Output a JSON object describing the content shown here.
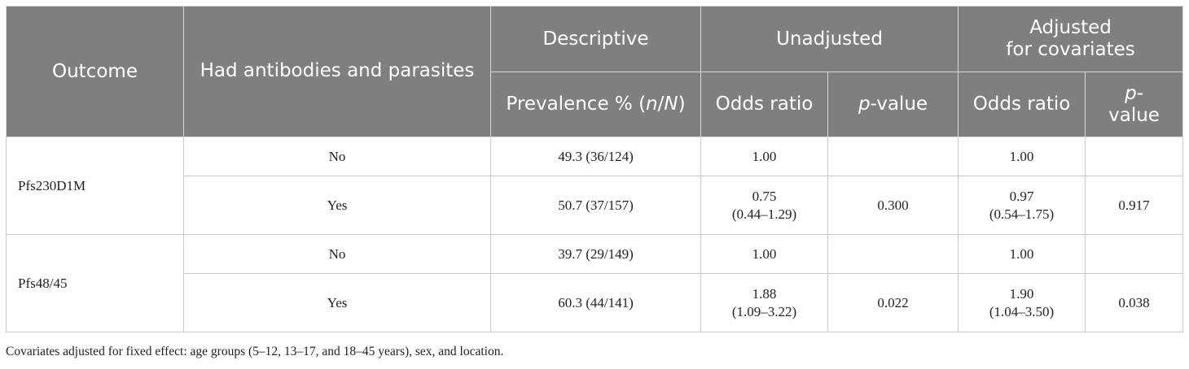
{
  "header": {
    "outcome": "Outcome",
    "had_antibodies": "Had antibodies and parasites",
    "descriptive": "Descriptive",
    "unadjusted": "Unadjusted",
    "adjusted_line1": "Adjusted",
    "adjusted_line2": "for covariates",
    "prevalence_prefix": "Prevalence % (",
    "prevalence_n": "n",
    "prevalence_slash": "/",
    "prevalence_N": "N",
    "prevalence_suffix": ")",
    "odds_ratio": "Odds ratio",
    "p_italic": "p",
    "p_value_suffix": "-value",
    "adj_odds_ratio": "Odds ratio",
    "adj_p_italic": "p",
    "adj_p_line1_suffix": "-",
    "adj_p_line2": "value"
  },
  "groups": [
    {
      "outcome": "Pfs230D1M",
      "rows": [
        {
          "had": "No",
          "prevalence": "49.3 (36/124)",
          "or": "1.00",
          "or_ci": "",
          "p": "",
          "adj_or": "1.00",
          "adj_or_ci": "",
          "adj_p": ""
        },
        {
          "had": "Yes",
          "prevalence": "50.7 (37/157)",
          "or": "0.75",
          "or_ci": "(0.44–1.29)",
          "p": "0.300",
          "adj_or": "0.97",
          "adj_or_ci": "(0.54–1.75)",
          "adj_p": "0.917"
        }
      ]
    },
    {
      "outcome": "Pfs48/45",
      "rows": [
        {
          "had": "No",
          "prevalence": "39.7 (29/149)",
          "or": "1.00",
          "or_ci": "",
          "p": "",
          "adj_or": "1.00",
          "adj_or_ci": "",
          "adj_p": ""
        },
        {
          "had": "Yes",
          "prevalence": "60.3 (44/141)",
          "or": "1.88",
          "or_ci": "(1.09–3.22)",
          "p": "0.022",
          "adj_or": "1.90",
          "adj_or_ci": "(1.04–3.50)",
          "adj_p": "0.038"
        }
      ]
    }
  ],
  "footnote": "Covariates adjusted for fixed effect: age groups (5–12, 13–17, and 18–45 years), sex, and location."
}
